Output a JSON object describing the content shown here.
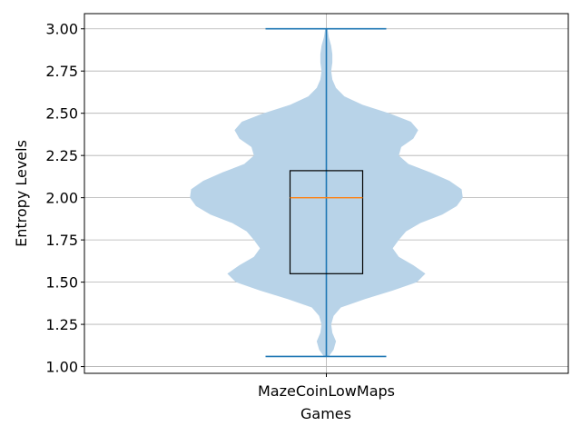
{
  "chart_data": {
    "type": "violin",
    "xlabel": "Games",
    "ylabel": "Entropy Levels",
    "categories": [
      "MazeCoinLowMaps"
    ],
    "ylim": [
      0.96,
      3.09
    ],
    "yticks": [
      "1.00",
      "1.25",
      "1.50",
      "1.75",
      "2.00",
      "2.25",
      "2.50",
      "2.75",
      "3.00"
    ],
    "grid": true,
    "series": [
      {
        "category": "MazeCoinLowMaps",
        "min": 1.06,
        "max": 3.0,
        "q1": 1.55,
        "median": 2.0,
        "q3": 2.16,
        "density": [
          [
            1.06,
            0.02
          ],
          [
            1.1,
            0.06
          ],
          [
            1.15,
            0.08
          ],
          [
            1.2,
            0.05
          ],
          [
            1.25,
            0.04
          ],
          [
            1.3,
            0.06
          ],
          [
            1.35,
            0.12
          ],
          [
            1.4,
            0.32
          ],
          [
            1.45,
            0.55
          ],
          [
            1.5,
            0.75
          ],
          [
            1.55,
            0.82
          ],
          [
            1.6,
            0.72
          ],
          [
            1.65,
            0.6
          ],
          [
            1.7,
            0.55
          ],
          [
            1.75,
            0.6
          ],
          [
            1.8,
            0.66
          ],
          [
            1.85,
            0.78
          ],
          [
            1.9,
            0.96
          ],
          [
            1.95,
            1.08
          ],
          [
            2.0,
            1.13
          ],
          [
            2.05,
            1.12
          ],
          [
            2.1,
            1.02
          ],
          [
            2.15,
            0.86
          ],
          [
            2.2,
            0.68
          ],
          [
            2.25,
            0.6
          ],
          [
            2.3,
            0.62
          ],
          [
            2.35,
            0.72
          ],
          [
            2.4,
            0.76
          ],
          [
            2.45,
            0.7
          ],
          [
            2.5,
            0.52
          ],
          [
            2.55,
            0.3
          ],
          [
            2.6,
            0.15
          ],
          [
            2.65,
            0.08
          ],
          [
            2.7,
            0.05
          ],
          [
            2.75,
            0.04
          ],
          [
            2.8,
            0.05
          ],
          [
            2.85,
            0.05
          ],
          [
            2.9,
            0.04
          ],
          [
            2.95,
            0.02
          ],
          [
            3.0,
            0.01
          ]
        ]
      }
    ],
    "colors": {
      "violin_fill": "#b8d3e8",
      "whisker": "#1f77b4",
      "median": "#ff7f0e",
      "box": "#000000",
      "grid": "#b0b0b0"
    }
  }
}
